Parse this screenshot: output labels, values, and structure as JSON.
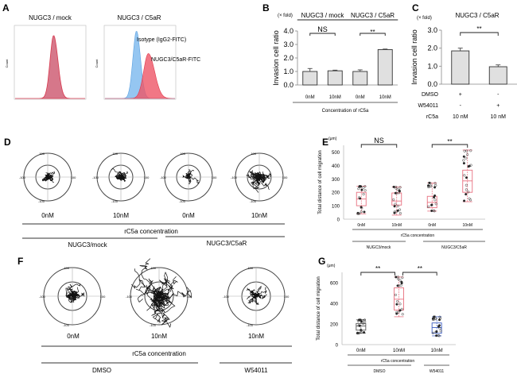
{
  "panels": {
    "A": {
      "letter": "A",
      "left_title": "NUGC3 / mock",
      "right_title": "NUGC3 / C5aR",
      "legend_isotype": "Isotype (IgG2-FITC)",
      "legend_c5ar": "NUGC3/C5aR-FITC",
      "ylabel": "Count"
    },
    "B": {
      "letter": "B"
    },
    "C": {
      "letter": "C"
    },
    "D": {
      "letter": "D",
      "conc_labels": [
        "0nM",
        "10nM",
        "0nM",
        "10nM"
      ],
      "conc_title": "rC5a concentration",
      "group_labels": [
        "NUGC3/mock",
        "NUGC3/C5aR"
      ],
      "ring_ticks": [
        "100",
        "50",
        "0",
        "-50",
        "-100"
      ]
    },
    "E": {
      "letter": "E"
    },
    "F": {
      "letter": "F",
      "conc_labels": [
        "0nM",
        "10nM",
        "10nM"
      ],
      "conc_title": "rC5a concentration",
      "group_labels": [
        "DMSO",
        "W54011"
      ]
    },
    "G": {
      "letter": "G"
    }
  },
  "chart_data": [
    {
      "id": "A",
      "type": "area",
      "title": "Flow cytometry histograms",
      "subplots": [
        {
          "title": "NUGC3 / mock",
          "series": [
            {
              "name": "mock",
              "color": "#d9475a",
              "peak_x": 0.55,
              "peak_count": 370
            }
          ],
          "ylim": [
            0,
            420
          ]
        },
        {
          "title": "NUGC3 / C5aR",
          "series": [
            {
              "name": "Isotype (IgG2-FITC)",
              "color": "#6aaee8",
              "peak_x": 0.45,
              "peak_count": 330
            },
            {
              "name": "NUGC3/C5aR-FITC",
              "color": "#e8505f",
              "peak_x": 0.62,
              "peak_count": 220
            }
          ],
          "ylim": [
            0,
            350
          ]
        }
      ],
      "ylabel": "Count"
    },
    {
      "id": "B",
      "type": "bar",
      "unit": "(× fold)",
      "ylabel": "Invasion cell ratio",
      "ylim": [
        0,
        4
      ],
      "yticks": [
        "0.0",
        "1.0",
        "2.0",
        "3.0",
        "4.0"
      ],
      "categories": [
        "0nM",
        "10nM",
        "0nM",
        "10nM"
      ],
      "values": [
        1.0,
        1.05,
        1.0,
        2.62
      ],
      "errors": [
        0.22,
        0.05,
        0.12,
        0.04
      ],
      "groups": [
        "NUGC3 / mock",
        "NUGC3 / C5aR"
      ],
      "significance": [
        "NS",
        "**"
      ],
      "xlabel": "Concentration of rC5a"
    },
    {
      "id": "C",
      "type": "bar",
      "title": "NUGC3 / C5aR",
      "unit": "(× fold)",
      "ylabel": "Invasion cell ratio",
      "ylim": [
        0,
        3
      ],
      "yticks": [
        "0.0",
        "1.0",
        "2.0",
        "3.0"
      ],
      "categories": [
        "1",
        "2"
      ],
      "values": [
        1.85,
        0.97
      ],
      "errors": [
        0.15,
        0.1
      ],
      "significance": "**",
      "table_rows": [
        {
          "label": "DMSO",
          "values": [
            "+",
            "-"
          ]
        },
        {
          "label": "W54011",
          "values": [
            "-",
            "+"
          ]
        },
        {
          "label": "rC5a",
          "values": [
            "10 nM",
            "10 nM"
          ]
        }
      ]
    },
    {
      "id": "E",
      "type": "scatter",
      "unit": "(μm)",
      "ylabel": "Total distance of cell migration",
      "ylim": [
        0,
        550
      ],
      "yticks": [
        "0",
        "100",
        "200",
        "300",
        "400",
        "500"
      ],
      "categories": [
        "0nM",
        "10nM",
        "0nM",
        "10nM"
      ],
      "boxes": [
        {
          "min": 40,
          "q1": 100,
          "median": 150,
          "q3": 200,
          "max": 245,
          "color": "#e8707f"
        },
        {
          "min": 30,
          "q1": 105,
          "median": 135,
          "q3": 195,
          "max": 240,
          "color": "#e8707f"
        },
        {
          "min": 60,
          "q1": 85,
          "median": 125,
          "q3": 170,
          "max": 270,
          "color": "#e8707f"
        },
        {
          "min": 130,
          "q1": 200,
          "median": 285,
          "q3": 365,
          "max": 515,
          "color": "#e8707f"
        }
      ],
      "significance": [
        "NS",
        "**"
      ],
      "xlabel": "rC5a concentration",
      "groups": [
        "NUGC3/mock",
        "NUGC3/C5aR"
      ]
    },
    {
      "id": "G",
      "type": "scatter",
      "unit": "(μm)",
      "ylabel": "Total distance of cell migration",
      "ylim": [
        0,
        700
      ],
      "yticks": [
        "0",
        "200",
        "400",
        "600"
      ],
      "categories": [
        "0nM",
        "10nM",
        "10nM"
      ],
      "boxes": [
        {
          "min": 110,
          "q1": 140,
          "median": 180,
          "q3": 205,
          "max": 240,
          "color": "#555555"
        },
        {
          "min": 270,
          "q1": 335,
          "median": 440,
          "q3": 550,
          "max": 655,
          "color": "#e8707f"
        },
        {
          "min": 85,
          "q1": 110,
          "median": 165,
          "q3": 210,
          "max": 270,
          "color": "#3d5fc4"
        }
      ],
      "significance": [
        "**",
        "**"
      ],
      "xlabel": "rC5a concentration",
      "groups": [
        "DMSO",
        "W54011"
      ]
    }
  ]
}
